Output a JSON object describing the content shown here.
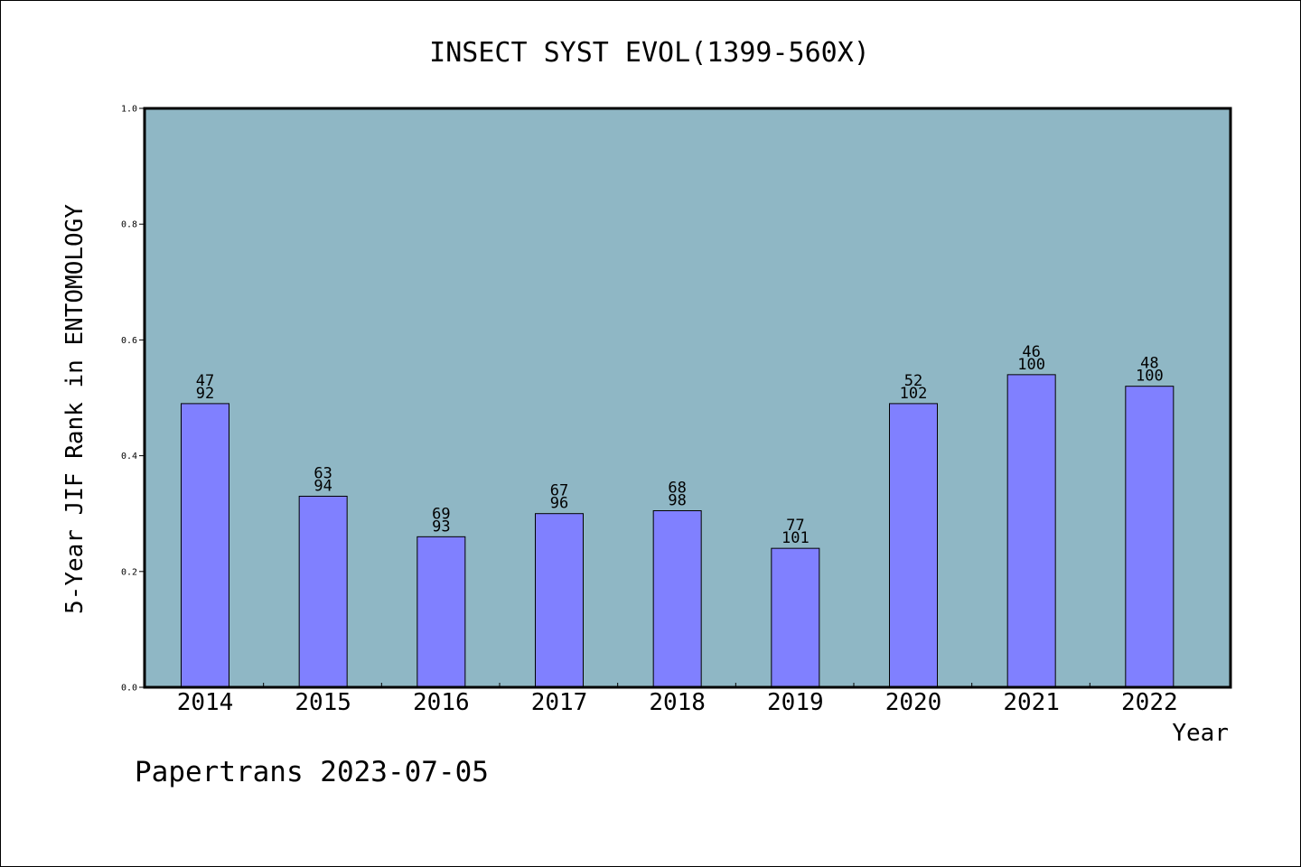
{
  "chart_data": {
    "type": "bar",
    "title": "INSECT SYST EVOL(1399-560X)",
    "xlabel": "Year",
    "ylabel": "5-Year JIF Rank in ENTOMOLOGY",
    "ylim": [
      0.0,
      1.0
    ],
    "yticks": [
      "0.0",
      "0.2",
      "0.4",
      "0.6",
      "0.8",
      "1.0"
    ],
    "categories": [
      "2014",
      "2015",
      "2016",
      "2017",
      "2018",
      "2019",
      "2020",
      "2021",
      "2022"
    ],
    "values": [
      0.49,
      0.33,
      0.26,
      0.3,
      0.305,
      0.24,
      0.49,
      0.54,
      0.52
    ],
    "rank_labels": [
      "47",
      "63",
      "69",
      "67",
      "68",
      "77",
      "52",
      "46",
      "48"
    ],
    "total_labels": [
      "92",
      "94",
      "93",
      "96",
      "98",
      "101",
      "102",
      "100",
      "100"
    ],
    "grid": false,
    "colors": {
      "plot_background": "#8fb7c5",
      "bar_fill": "#8080ff",
      "bar_stroke": "#000000",
      "axis": "#000000"
    }
  },
  "footer": {
    "watermark": "Papertrans 2023-07-05"
  }
}
